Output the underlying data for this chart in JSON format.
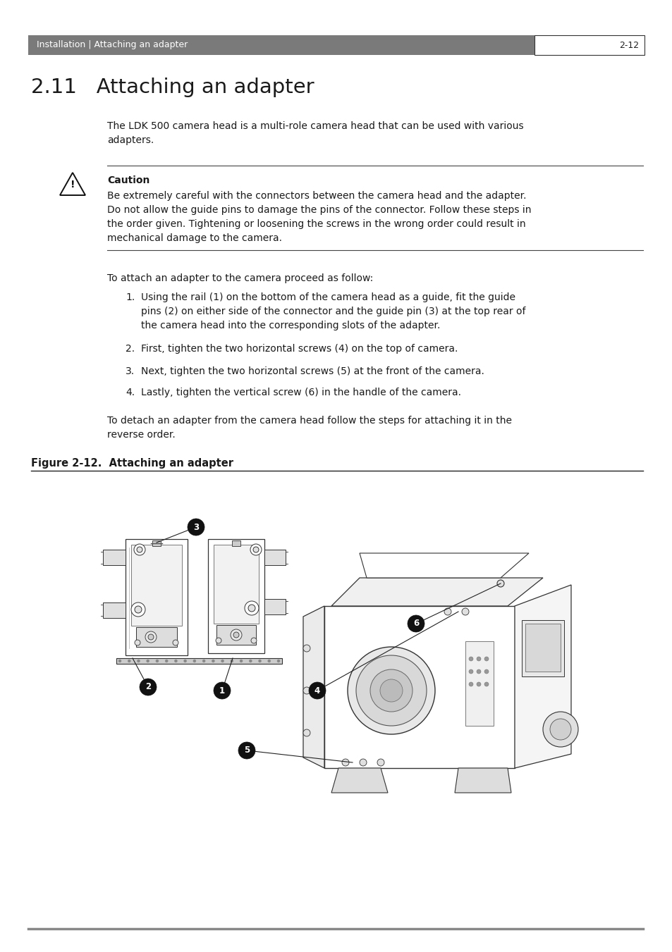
{
  "page_bg": "#ffffff",
  "header_bg": "#7a7a7a",
  "header_text_color": "#ffffff",
  "header_left": "Installation | Attaching an adapter",
  "header_right": "2-12",
  "section_title": "2.11   Attaching an adapter",
  "body_text_color": "#1a1a1a",
  "intro_text": "The LDK 500 camera head is a multi-role camera head that can be used with various\nadapters.",
  "caution_title": "Caution",
  "caution_text": "Be extremely careful with the connectors between the camera head and the adapter.\nDo not allow the guide pins to damage the pins of the connector. Follow these steps in\nthe order given. Tightening or loosening the screws in the wrong order could result in\nmechanical damage to the camera.",
  "procedure_intro": "To attach an adapter to the camera proceed as follow:",
  "step1": "Using the rail (1) on the bottom of the camera head as a guide, fit the guide\npins (2) on either side of the connector and the guide pin (3) at the top rear of\nthe camera head into the corresponding slots of the adapter.",
  "step2": "First, tighten the two horizontal screws (4) on the top of camera.",
  "step3": "Next, tighten the two horizontal screws (5) at the front of the camera.",
  "step4": "Lastly, tighten the vertical screw (6) in the handle of the camera.",
  "detach_text": "To detach an adapter from the camera head follow the steps for attaching it in the\nreverse order.",
  "figure_caption": "Figure 2-12.  Attaching an adapter",
  "line_color": "#333333",
  "caution_line_color": "#555555"
}
